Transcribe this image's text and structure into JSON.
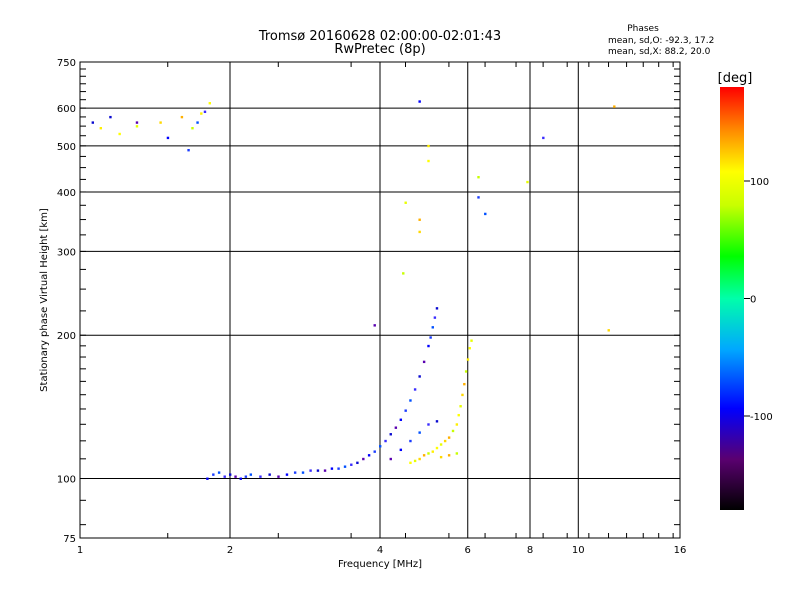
{
  "header": {
    "title_line1": "Tromsø 20160628 02:00:00-02:01:43",
    "title_line2": "RwPretec (8p)"
  },
  "stats": {
    "heading": "Phases",
    "line_o": "mean, sd,O: -92.3, 17.2",
    "line_x": "mean, sd,X:  88.2, 20.0"
  },
  "colorbar": {
    "unit_label": "[deg]",
    "ticks": [
      {
        "label": "100",
        "value": 100
      },
      {
        "label": "0",
        "value": 0
      },
      {
        "label": "-100",
        "value": -100
      }
    ]
  },
  "chart_data": {
    "type": "scatter",
    "xlabel": "Frequency [MHz]",
    "ylabel": "Stationary phase Virtual Height [km]",
    "x_scale": "log",
    "y_scale": "log",
    "xlim": [
      1,
      16
    ],
    "ylim": [
      75,
      750
    ],
    "x_ticks": [
      1,
      2,
      4,
      6,
      8,
      10,
      16
    ],
    "y_ticks": [
      75,
      100,
      200,
      300,
      400,
      500,
      600,
      750
    ],
    "x_grid": [
      2,
      4,
      6,
      8,
      10
    ],
    "y_grid": [
      100,
      200,
      300,
      400,
      500,
      600
    ],
    "grid": true,
    "color_scale": {
      "variable": "phase",
      "unit": "deg",
      "min": -180,
      "max": 180
    },
    "series": [
      {
        "mode": "O",
        "points": [
          [
            1.8,
            100
          ],
          [
            1.85,
            102
          ],
          [
            1.9,
            103
          ],
          [
            1.95,
            101
          ],
          [
            2.0,
            102
          ],
          [
            2.05,
            101
          ],
          [
            2.1,
            100
          ],
          [
            2.15,
            101
          ],
          [
            2.2,
            102
          ],
          [
            2.3,
            101
          ],
          [
            2.4,
            102
          ],
          [
            2.5,
            101
          ],
          [
            2.6,
            102
          ],
          [
            2.7,
            103
          ],
          [
            2.8,
            103
          ],
          [
            2.9,
            104
          ],
          [
            3.0,
            104
          ],
          [
            3.1,
            104
          ],
          [
            3.2,
            105
          ],
          [
            3.3,
            105
          ],
          [
            3.4,
            106
          ],
          [
            3.5,
            107
          ],
          [
            3.6,
            108
          ],
          [
            3.7,
            110
          ],
          [
            3.8,
            112
          ],
          [
            3.9,
            114
          ],
          [
            4.0,
            117
          ],
          [
            4.1,
            120
          ],
          [
            4.2,
            124
          ],
          [
            4.3,
            128
          ],
          [
            4.4,
            133
          ],
          [
            4.5,
            139
          ],
          [
            4.6,
            146
          ],
          [
            4.7,
            154
          ],
          [
            4.8,
            164
          ],
          [
            4.9,
            176
          ],
          [
            5.0,
            190
          ],
          [
            5.05,
            198
          ],
          [
            5.1,
            208
          ],
          [
            5.15,
            218
          ],
          [
            5.2,
            228
          ],
          [
            4.2,
            110
          ],
          [
            4.4,
            115
          ],
          [
            4.6,
            120
          ],
          [
            4.8,
            125
          ],
          [
            5.0,
            130
          ],
          [
            5.2,
            132
          ],
          [
            3.9,
            210
          ],
          [
            4.8,
            620
          ],
          [
            6.3,
            390
          ],
          [
            6.5,
            360
          ],
          [
            8.5,
            520
          ],
          [
            1.15,
            575
          ],
          [
            1.3,
            560
          ],
          [
            1.5,
            520
          ],
          [
            1.65,
            490
          ],
          [
            1.72,
            560
          ],
          [
            1.78,
            590
          ],
          [
            1.06,
            560
          ]
        ]
      },
      {
        "mode": "X",
        "points": [
          [
            4.6,
            108
          ],
          [
            4.7,
            109
          ],
          [
            4.8,
            110
          ],
          [
            4.9,
            112
          ],
          [
            5.0,
            113
          ],
          [
            5.1,
            114
          ],
          [
            5.2,
            116
          ],
          [
            5.3,
            118
          ],
          [
            5.4,
            120
          ],
          [
            5.5,
            122
          ],
          [
            5.6,
            126
          ],
          [
            5.7,
            130
          ],
          [
            5.75,
            136
          ],
          [
            5.8,
            142
          ],
          [
            5.85,
            150
          ],
          [
            5.9,
            158
          ],
          [
            5.95,
            168
          ],
          [
            6.0,
            178
          ],
          [
            6.05,
            188
          ],
          [
            6.1,
            195
          ],
          [
            5.3,
            111
          ],
          [
            5.5,
            112
          ],
          [
            5.7,
            113
          ],
          [
            1.1,
            545
          ],
          [
            1.2,
            530
          ],
          [
            1.3,
            550
          ],
          [
            1.45,
            560
          ],
          [
            1.6,
            575
          ],
          [
            1.68,
            545
          ],
          [
            1.75,
            585
          ],
          [
            1.82,
            615
          ],
          [
            4.5,
            380
          ],
          [
            4.8,
            330
          ],
          [
            4.8,
            350
          ],
          [
            6.3,
            430
          ],
          [
            5.0,
            500
          ],
          [
            5.0,
            465
          ],
          [
            7.9,
            420
          ],
          [
            11.5,
            205
          ],
          [
            11.8,
            605
          ],
          [
            4.45,
            270
          ]
        ]
      }
    ]
  }
}
